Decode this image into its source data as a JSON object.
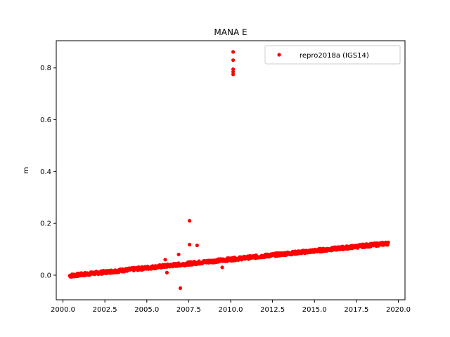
{
  "chart_data": {
    "type": "scatter",
    "title": "MANA E",
    "xlabel": "",
    "ylabel": "m",
    "xlim": [
      1999.6,
      2020.4
    ],
    "ylim": [
      -0.095,
      0.905
    ],
    "xticks": [
      2000.0,
      2002.5,
      2005.0,
      2007.5,
      2010.0,
      2012.5,
      2015.0,
      2017.5,
      2020.0
    ],
    "xtick_labels": [
      "2000.0",
      "2002.5",
      "2005.0",
      "2007.5",
      "2010.0",
      "2012.5",
      "2015.0",
      "2017.5",
      "2020.0"
    ],
    "yticks": [
      0.0,
      0.2,
      0.4,
      0.6,
      0.8
    ],
    "ytick_labels": [
      "0.0",
      "0.2",
      "0.4",
      "0.6",
      "0.8"
    ],
    "grid": false,
    "legend": {
      "placement": "top-right"
    },
    "series": [
      {
        "name": "repro2018a (IGS14)",
        "color": "#ff0000",
        "trend": {
          "x_start": 2000.4,
          "x_end": 2019.4,
          "y_start": -0.002,
          "y_end": 0.123
        },
        "outliers": [
          {
            "x": 2006.1,
            "y": 0.06
          },
          {
            "x": 2006.2,
            "y": 0.01
          },
          {
            "x": 2006.9,
            "y": 0.08
          },
          {
            "x": 2007.0,
            "y": -0.05
          },
          {
            "x": 2007.55,
            "y": 0.21
          },
          {
            "x": 2007.55,
            "y": 0.118
          },
          {
            "x": 2008.0,
            "y": 0.115
          },
          {
            "x": 2009.5,
            "y": 0.03
          },
          {
            "x": 2010.15,
            "y": 0.862
          },
          {
            "x": 2010.15,
            "y": 0.83
          },
          {
            "x": 2010.15,
            "y": 0.795
          },
          {
            "x": 2010.15,
            "y": 0.785
          },
          {
            "x": 2010.15,
            "y": 0.775
          }
        ]
      }
    ]
  }
}
